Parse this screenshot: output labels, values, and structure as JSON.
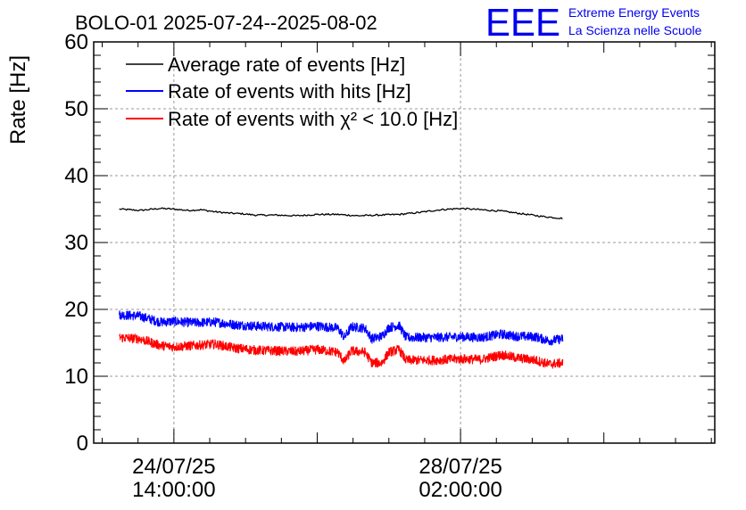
{
  "chart_data": {
    "type": "line",
    "title": "BOLO-01 2025-07-24--2025-08-02",
    "ylabel": "Rate [Hz]",
    "xlabel": "",
    "ylim": [
      0,
      60
    ],
    "yticks": [
      0,
      10,
      20,
      30,
      40,
      50,
      60
    ],
    "x_range_hours": [
      -23.5,
      158.5
    ],
    "xticks": [
      {
        "hours": 0,
        "date": "24/07/25",
        "time": "14:00:00"
      },
      {
        "hours": 84,
        "date": "28/07/25",
        "time": "02:00:00"
      }
    ],
    "grid": true,
    "legend_position": "top-left",
    "series": [
      {
        "name": "Average rate of events [Hz]",
        "color": "#000000",
        "points": [
          [
            -16,
            35.0
          ],
          [
            -10,
            34.8
          ],
          [
            -4,
            35.1
          ],
          [
            0,
            35.0
          ],
          [
            4,
            34.8
          ],
          [
            8,
            34.9
          ],
          [
            12,
            34.6
          ],
          [
            16,
            34.4
          ],
          [
            20,
            34.3
          ],
          [
            24,
            34.1
          ],
          [
            30,
            34.1
          ],
          [
            36,
            34.0
          ],
          [
            42,
            34.2
          ],
          [
            48,
            34.2
          ],
          [
            54,
            34.0
          ],
          [
            60,
            34.1
          ],
          [
            66,
            34.2
          ],
          [
            72,
            34.5
          ],
          [
            78,
            34.9
          ],
          [
            84,
            35.1
          ],
          [
            90,
            34.9
          ],
          [
            96,
            34.7
          ],
          [
            102,
            34.3
          ],
          [
            108,
            33.9
          ],
          [
            114,
            33.6
          ]
        ]
      },
      {
        "name": "Rate of events with hits [Hz]",
        "color": "#0000ff",
        "points": [
          [
            -16,
            19.2
          ],
          [
            -10,
            19.0
          ],
          [
            -4,
            18.1
          ],
          [
            0,
            18.2
          ],
          [
            6,
            18.0
          ],
          [
            12,
            18.1
          ],
          [
            18,
            17.7
          ],
          [
            24,
            17.5
          ],
          [
            30,
            17.4
          ],
          [
            36,
            17.3
          ],
          [
            42,
            17.5
          ],
          [
            48,
            17.2
          ],
          [
            50,
            15.8
          ],
          [
            52,
            17.4
          ],
          [
            56,
            17.2
          ],
          [
            58,
            15.6
          ],
          [
            61,
            16.0
          ],
          [
            63,
            17.3
          ],
          [
            66,
            17.6
          ],
          [
            68,
            15.8
          ],
          [
            70,
            15.8
          ],
          [
            76,
            15.8
          ],
          [
            84,
            15.9
          ],
          [
            90,
            15.8
          ],
          [
            96,
            16.3
          ],
          [
            100,
            16.0
          ],
          [
            106,
            15.9
          ],
          [
            110,
            15.3
          ],
          [
            114,
            15.6
          ]
        ]
      },
      {
        "name": "Rate of events with χ² < 10.0 [Hz]",
        "color": "#ff0000",
        "points": [
          [
            -16,
            15.8
          ],
          [
            -10,
            15.6
          ],
          [
            -4,
            14.6
          ],
          [
            0,
            14.4
          ],
          [
            6,
            14.6
          ],
          [
            12,
            14.8
          ],
          [
            18,
            14.2
          ],
          [
            24,
            13.9
          ],
          [
            30,
            13.8
          ],
          [
            36,
            13.7
          ],
          [
            42,
            14.0
          ],
          [
            48,
            13.6
          ],
          [
            50,
            12.2
          ],
          [
            52,
            13.8
          ],
          [
            56,
            13.6
          ],
          [
            58,
            12.0
          ],
          [
            61,
            12.0
          ],
          [
            63,
            13.6
          ],
          [
            66,
            14.0
          ],
          [
            68,
            12.4
          ],
          [
            70,
            12.4
          ],
          [
            76,
            12.4
          ],
          [
            84,
            12.6
          ],
          [
            90,
            12.5
          ],
          [
            96,
            13.2
          ],
          [
            100,
            12.8
          ],
          [
            106,
            12.4
          ],
          [
            110,
            11.8
          ],
          [
            114,
            12.0
          ]
        ]
      }
    ]
  },
  "logo": {
    "text": "EEE",
    "line1": "Extreme Energy Events",
    "line2": "La Scienza nelle Scuole",
    "color": "#0000ee"
  }
}
